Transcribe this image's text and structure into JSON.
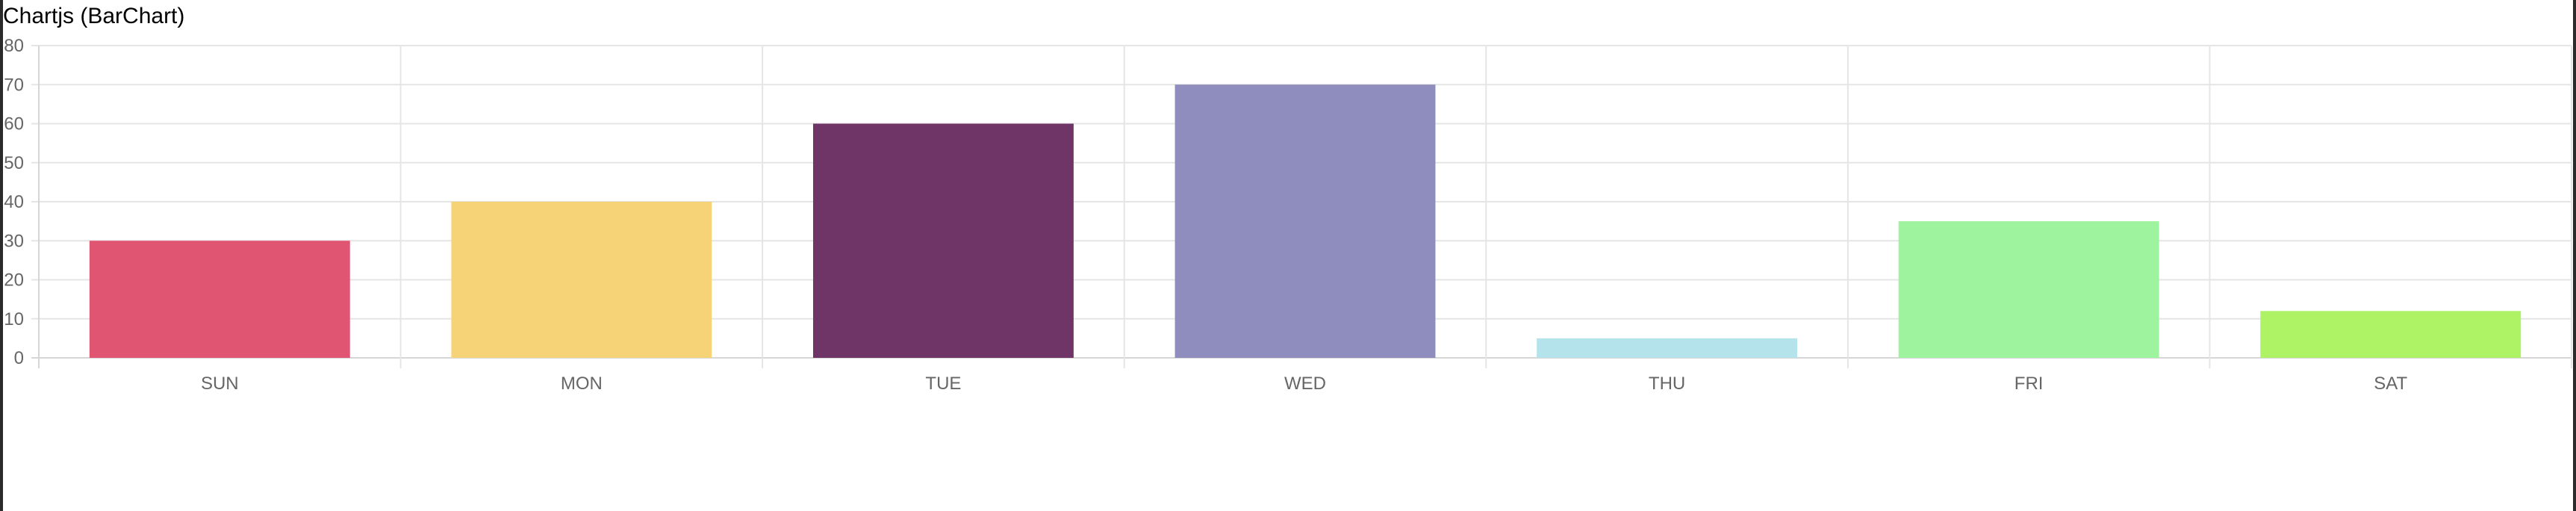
{
  "page": {
    "title": "Chartjs (BarChart)"
  },
  "chart_data": {
    "type": "bar",
    "title": "",
    "xlabel": "",
    "ylabel": "",
    "categories": [
      "SUN",
      "MON",
      "TUE",
      "WED",
      "THU",
      "FRI",
      "SAT"
    ],
    "values": [
      30,
      40,
      60,
      70,
      5,
      35,
      12
    ],
    "colors": [
      "#e05572",
      "#f7d377",
      "#6f3566",
      "#8e8dbd",
      "#b5e3ec",
      "#9ef39e",
      "#aef265"
    ],
    "ylim": [
      0,
      80
    ],
    "yticks": [
      "0",
      "10",
      "20",
      "30",
      "40",
      "50",
      "60",
      "70",
      "80"
    ],
    "grid": true,
    "legend": "none"
  },
  "style": {
    "grid_color": "#e5e5e5",
    "axis_color": "#d6d6d6",
    "tick_text_color": "#666666"
  }
}
